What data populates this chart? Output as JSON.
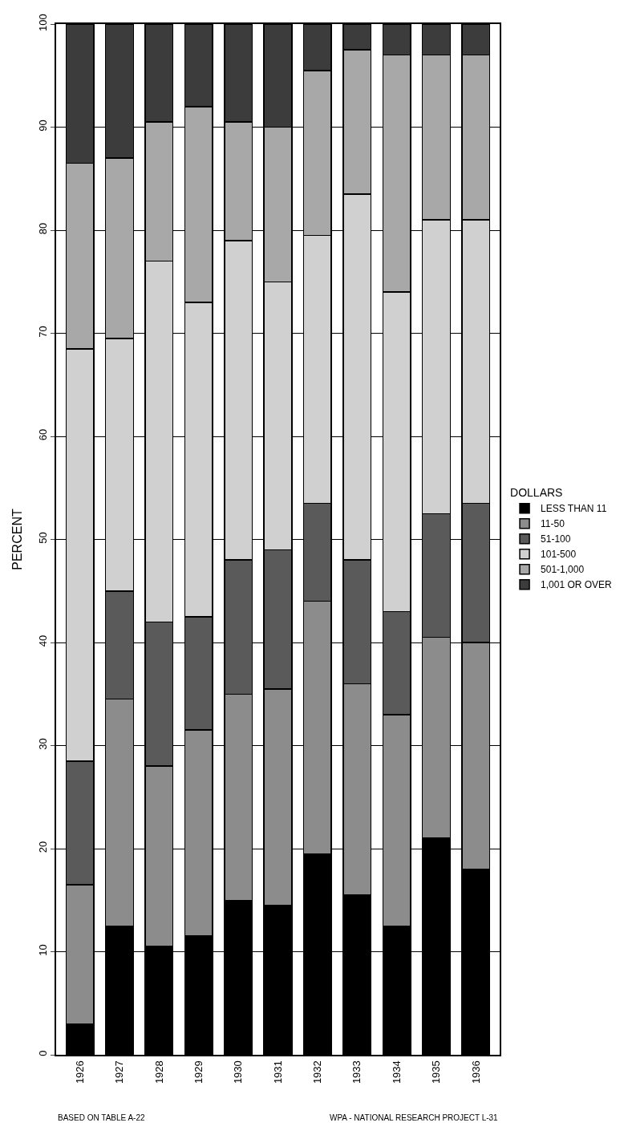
{
  "chart_data": {
    "type": "bar",
    "stacked": true,
    "ylabel": "PERCENT",
    "legend_title": "DOLLARS",
    "categories": [
      "1926",
      "1927",
      "1928",
      "1929",
      "1930",
      "1931",
      "1932",
      "1933",
      "1934",
      "1935",
      "1936"
    ],
    "series": [
      {
        "name": "LESS THAN 11",
        "color": "#000000",
        "values": [
          3,
          12.5,
          10.5,
          11.5,
          15,
          14.5,
          19.5,
          15.5,
          12.5,
          21,
          18
        ]
      },
      {
        "name": "11-50",
        "color": "#8c8c8c",
        "values": [
          13.5,
          22,
          17.5,
          20,
          20,
          21,
          24.5,
          20.5,
          20.5,
          19.5,
          22
        ]
      },
      {
        "name": "51-100",
        "color": "#5a5a5a",
        "values": [
          12,
          10.5,
          14,
          11,
          13,
          13.5,
          9.5,
          12,
          10,
          12,
          13.5
        ]
      },
      {
        "name": "101-500",
        "color": "#d0d0d0",
        "values": [
          40,
          24.5,
          35,
          30.5,
          31,
          26,
          26,
          35.5,
          31,
          28.5,
          27.5
        ]
      },
      {
        "name": "501-1,000",
        "color": "#a8a8a8",
        "values": [
          18,
          17.5,
          13.5,
          19,
          11.5,
          15,
          16,
          14,
          23,
          16,
          16
        ]
      },
      {
        "name": "1,001 OR OVER",
        "color": "#3c3c3c",
        "values": [
          13.5,
          13,
          9.5,
          8,
          9.5,
          10,
          4.5,
          2.5,
          3,
          3,
          3
        ]
      }
    ],
    "ylim": [
      0,
      100
    ],
    "yticks": [
      0,
      10,
      20,
      30,
      40,
      50,
      60,
      70,
      80,
      90,
      100
    ],
    "grid": "y",
    "legend": "right",
    "annotations": [
      "BASED ON TABLE A-22",
      "WPA - NATIONAL RESEARCH PROJECT L-31"
    ]
  }
}
